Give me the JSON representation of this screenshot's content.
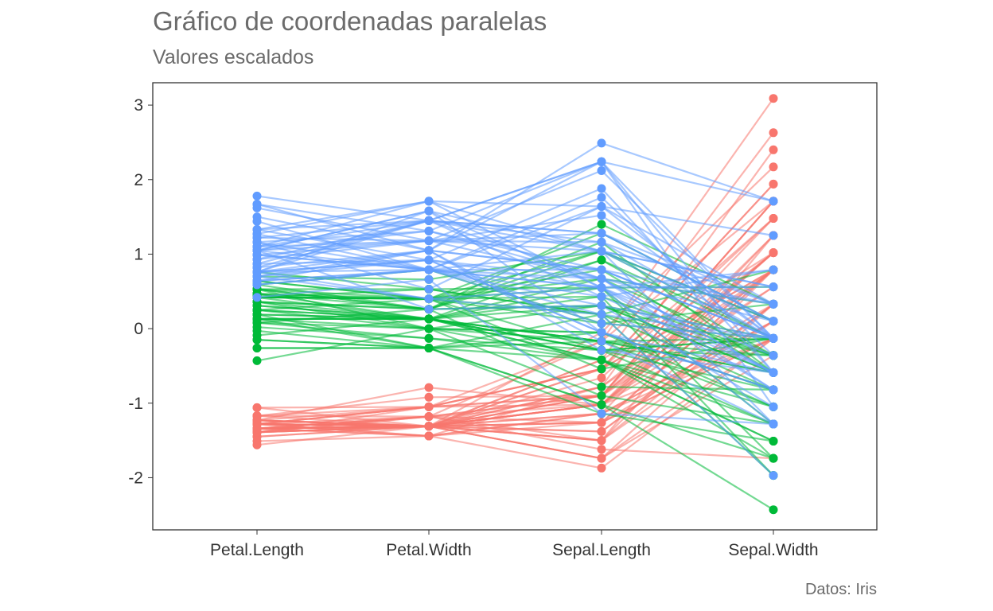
{
  "title": "Gráfico de coordenadas paralelas",
  "subtitle": "Valores escalados",
  "caption": "Datos: Iris",
  "chart_data": {
    "type": "line",
    "title": "Gráfico de coordenadas paralelas",
    "subtitle": "Valores escalados",
    "xlabel": "",
    "ylabel": "",
    "categories": [
      "Petal.Length",
      "Petal.Width",
      "Sepal.Length",
      "Sepal.Width"
    ],
    "ylim": [
      -2.7,
      3.3
    ],
    "yticks": [
      -2,
      -1,
      0,
      1,
      2,
      3
    ],
    "grid": false,
    "legend": "none",
    "colors": {
      "red": "#F8766D",
      "green": "#00BA38",
      "blue": "#619CFF"
    },
    "groups": [
      {
        "color": "#F8766D",
        "lines": [
          [
            -1.34,
            -1.31,
            -0.9,
            1.02
          ],
          [
            -1.34,
            -1.31,
            -1.14,
            -0.13
          ],
          [
            -1.39,
            -1.31,
            -1.38,
            0.33
          ],
          [
            -1.28,
            -1.31,
            -1.5,
            0.1
          ],
          [
            -1.34,
            -1.31,
            -1.02,
            1.25
          ],
          [
            -1.17,
            -1.05,
            -0.54,
            1.94
          ],
          [
            -1.34,
            -1.18,
            -1.5,
            0.79
          ],
          [
            -1.28,
            -1.31,
            -1.02,
            0.79
          ],
          [
            -1.34,
            -1.31,
            -1.74,
            -0.36
          ],
          [
            -1.28,
            -1.44,
            -1.14,
            0.1
          ],
          [
            -1.28,
            -1.31,
            -0.54,
            1.48
          ],
          [
            -1.23,
            -1.31,
            -1.26,
            0.79
          ],
          [
            -1.34,
            -1.44,
            -1.26,
            -0.13
          ],
          [
            -1.51,
            -1.44,
            -1.87,
            -0.13
          ],
          [
            -1.45,
            -1.31,
            -0.05,
            2.17
          ],
          [
            -1.28,
            -1.05,
            -0.17,
            3.09
          ],
          [
            -1.39,
            -1.05,
            -0.54,
            1.94
          ],
          [
            -1.34,
            -1.18,
            -0.9,
            1.02
          ],
          [
            -1.17,
            -1.18,
            -0.17,
            1.71
          ],
          [
            -1.28,
            -1.18,
            -0.9,
            1.71
          ],
          [
            -1.17,
            -1.31,
            -0.54,
            0.79
          ],
          [
            -1.28,
            -1.05,
            -0.9,
            1.48
          ],
          [
            -1.56,
            -1.31,
            -1.5,
            1.25
          ],
          [
            -1.17,
            -0.92,
            -0.9,
            0.56
          ],
          [
            -1.06,
            -1.31,
            -1.26,
            0.79
          ],
          [
            -1.23,
            -1.31,
            -1.02,
            -0.13
          ],
          [
            -1.23,
            -1.05,
            -1.02,
            0.79
          ],
          [
            -1.28,
            -1.31,
            -0.78,
            1.02
          ],
          [
            -1.34,
            -1.31,
            -0.78,
            0.79
          ],
          [
            -1.23,
            -1.31,
            -1.38,
            0.33
          ],
          [
            -1.23,
            -1.31,
            -1.26,
            0.1
          ],
          [
            -1.28,
            -1.05,
            -0.54,
            0.79
          ],
          [
            -1.28,
            -1.44,
            -0.78,
            2.4
          ],
          [
            -1.34,
            -1.31,
            -0.42,
            2.63
          ],
          [
            -1.28,
            -1.31,
            -1.14,
            0.1
          ],
          [
            -1.45,
            -1.31,
            -1.02,
            0.33
          ],
          [
            -1.39,
            -1.31,
            -0.42,
            1.02
          ],
          [
            -1.34,
            -1.44,
            -1.14,
            1.25
          ],
          [
            -1.39,
            -1.31,
            -1.74,
            -0.13
          ],
          [
            -1.28,
            -1.31,
            -0.9,
            0.79
          ],
          [
            -1.39,
            -1.18,
            -1.02,
            1.02
          ],
          [
            -1.39,
            -1.18,
            -1.62,
            -1.74
          ],
          [
            -1.39,
            -1.31,
            -1.74,
            0.33
          ],
          [
            -1.23,
            -0.79,
            -1.02,
            1.02
          ],
          [
            -1.06,
            -1.05,
            -0.9,
            1.71
          ],
          [
            -1.34,
            -1.18,
            -1.26,
            -0.13
          ],
          [
            -1.23,
            -1.31,
            -0.9,
            1.71
          ],
          [
            -1.34,
            -1.31,
            -1.5,
            0.33
          ],
          [
            -1.28,
            -1.31,
            -0.66,
            1.48
          ],
          [
            -1.34,
            -1.31,
            -1.02,
            0.56
          ]
        ]
      },
      {
        "color": "#00BA38",
        "lines": [
          [
            0.53,
            0.26,
            1.4,
            0.33
          ],
          [
            0.45,
            0.4,
            0.67,
            0.33
          ],
          [
            0.64,
            0.4,
            1.28,
            0.1
          ],
          [
            0.13,
            0.13,
            -0.42,
            -1.74
          ],
          [
            0.47,
            0.4,
            0.79,
            -0.59
          ],
          [
            0.42,
            0.13,
            -0.17,
            -0.59
          ],
          [
            0.53,
            0.53,
            0.55,
            0.56
          ],
          [
            -0.26,
            -0.26,
            -1.14,
            -1.51
          ],
          [
            0.47,
            0.13,
            0.92,
            -0.36
          ],
          [
            0.08,
            0.26,
            -0.78,
            -0.82
          ],
          [
            -0.15,
            -0.26,
            -1.02,
            -2.43
          ],
          [
            0.25,
            0.4,
            0.07,
            -0.13
          ],
          [
            0.13,
            -0.26,
            0.19,
            -1.97
          ],
          [
            0.53,
            0.26,
            0.31,
            -0.36
          ],
          [
            -0.09,
            0.13,
            -0.29,
            -0.36
          ],
          [
            0.36,
            0.26,
            1.04,
            0.1
          ],
          [
            0.42,
            0.4,
            -0.29,
            -0.13
          ],
          [
            0.19,
            -0.26,
            -0.05,
            -0.82
          ],
          [
            0.42,
            0.4,
            0.43,
            -1.97
          ],
          [
            0.08,
            -0.13,
            -0.29,
            -1.28
          ],
          [
            0.59,
            0.79,
            0.07,
            0.33
          ],
          [
            0.13,
            0.13,
            0.31,
            -0.59
          ],
          [
            0.64,
            0.4,
            0.55,
            -1.28
          ],
          [
            0.53,
            0.0,
            0.31,
            -0.59
          ],
          [
            0.31,
            0.13,
            0.67,
            -0.36
          ],
          [
            0.36,
            0.26,
            0.92,
            -0.13
          ],
          [
            0.59,
            0.26,
            1.16,
            -0.59
          ],
          [
            0.7,
            0.66,
            1.04,
            -0.13
          ],
          [
            0.42,
            0.4,
            0.19,
            -0.36
          ],
          [
            -0.15,
            -0.26,
            -0.17,
            -1.05
          ],
          [
            0.02,
            -0.13,
            -0.42,
            -1.51
          ],
          [
            -0.03,
            -0.26,
            -0.42,
            -1.51
          ],
          [
            0.08,
            0.0,
            -0.05,
            -0.82
          ],
          [
            0.76,
            0.53,
            0.19,
            -0.82
          ],
          [
            0.42,
            0.4,
            -0.54,
            -0.13
          ],
          [
            0.42,
            0.53,
            0.19,
            0.79
          ],
          [
            0.53,
            0.4,
            1.04,
            0.1
          ],
          [
            0.36,
            0.13,
            0.55,
            -1.74
          ],
          [
            0.19,
            0.13,
            -0.29,
            -0.13
          ],
          [
            0.13,
            0.13,
            -0.42,
            -1.28
          ],
          [
            0.36,
            0.0,
            -0.42,
            -1.05
          ],
          [
            0.47,
            0.26,
            0.31,
            -0.13
          ],
          [
            0.13,
            0.0,
            -0.05,
            -1.05
          ],
          [
            -0.26,
            -0.26,
            -1.02,
            -1.74
          ],
          [
            0.25,
            0.13,
            -0.29,
            -0.82
          ],
          [
            0.25,
            0.0,
            -0.17,
            -0.13
          ],
          [
            0.25,
            0.13,
            -0.17,
            -0.36
          ],
          [
            0.31,
            0.13,
            0.43,
            -0.36
          ],
          [
            -0.43,
            0.0,
            -0.9,
            -1.28
          ],
          [
            0.19,
            0.13,
            -0.17,
            -0.59
          ]
        ]
      },
      {
        "color": "#619CFF",
        "lines": [
          [
            1.27,
            1.71,
            0.55,
            0.56
          ],
          [
            0.76,
            0.92,
            -0.05,
            -0.82
          ],
          [
            1.22,
            1.18,
            1.52,
            -0.13
          ],
          [
            1.05,
            0.79,
            0.55,
            -0.36
          ],
          [
            1.16,
            1.31,
            0.79,
            -0.13
          ],
          [
            1.62,
            1.18,
            2.12,
            -0.13
          ],
          [
            0.42,
            0.66,
            -1.14,
            -1.28
          ],
          [
            1.44,
            0.79,
            1.76,
            -0.36
          ],
          [
            1.16,
            0.79,
            1.04,
            -1.28
          ],
          [
            1.33,
            1.71,
            1.64,
            1.25
          ],
          [
            0.76,
            1.05,
            0.79,
            0.33
          ],
          [
            0.87,
            0.92,
            0.67,
            -0.82
          ],
          [
            0.99,
            1.18,
            1.16,
            -0.13
          ],
          [
            0.7,
            1.05,
            -0.17,
            -1.28
          ],
          [
            0.76,
            1.58,
            -0.05,
            -0.59
          ],
          [
            0.87,
            1.45,
            0.67,
            0.33
          ],
          [
            0.99,
            0.79,
            0.79,
            -0.13
          ],
          [
            1.67,
            1.31,
            2.24,
            1.71
          ],
          [
            1.78,
            1.45,
            2.24,
            -1.05
          ],
          [
            0.7,
            0.4,
            0.19,
            -1.97
          ],
          [
            1.1,
            1.45,
            1.28,
            0.33
          ],
          [
            0.64,
            1.05,
            -0.29,
            -0.59
          ],
          [
            1.67,
            1.05,
            2.24,
            -0.59
          ],
          [
            0.64,
            0.79,
            0.55,
            -0.82
          ],
          [
            1.1,
            1.18,
            1.04,
            0.56
          ],
          [
            1.27,
            0.79,
            1.64,
            0.33
          ],
          [
            0.59,
            0.79,
            0.43,
            -0.59
          ],
          [
            0.64,
            0.79,
            0.31,
            -0.13
          ],
          [
            1.05,
            1.18,
            0.67,
            -0.59
          ],
          [
            1.16,
            0.53,
            1.64,
            -0.13
          ],
          [
            1.33,
            0.92,
            1.88,
            -0.59
          ],
          [
            1.5,
            1.05,
            2.49,
            1.71
          ],
          [
            1.05,
            1.31,
            0.67,
            -0.59
          ],
          [
            0.76,
            0.4,
            0.55,
            -0.59
          ],
          [
            1.05,
            0.26,
            0.31,
            -1.05
          ],
          [
            1.33,
            1.45,
            2.24,
            -0.13
          ],
          [
            1.05,
            1.58,
            0.55,
            0.79
          ],
          [
            0.99,
            0.79,
            0.67,
            0.1
          ],
          [
            0.59,
            0.79,
            0.19,
            -0.13
          ],
          [
            0.93,
            1.18,
            1.28,
            0.1
          ],
          [
            1.05,
            1.58,
            1.04,
            0.1
          ],
          [
            0.76,
            1.45,
            1.28,
            0.1
          ],
          [
            0.76,
            0.92,
            -0.05,
            -0.82
          ],
          [
            1.22,
            1.45,
            1.16,
            0.33
          ],
          [
            1.1,
            1.71,
            1.04,
            0.56
          ],
          [
            0.82,
            1.45,
            1.04,
            -0.13
          ],
          [
            0.7,
            0.92,
            0.55,
            -1.28
          ],
          [
            0.82,
            1.05,
            0.79,
            -0.13
          ],
          [
            0.93,
            1.45,
            0.43,
            0.79
          ],
          [
            0.76,
            0.79,
            0.07,
            -0.13
          ]
        ]
      }
    ]
  }
}
